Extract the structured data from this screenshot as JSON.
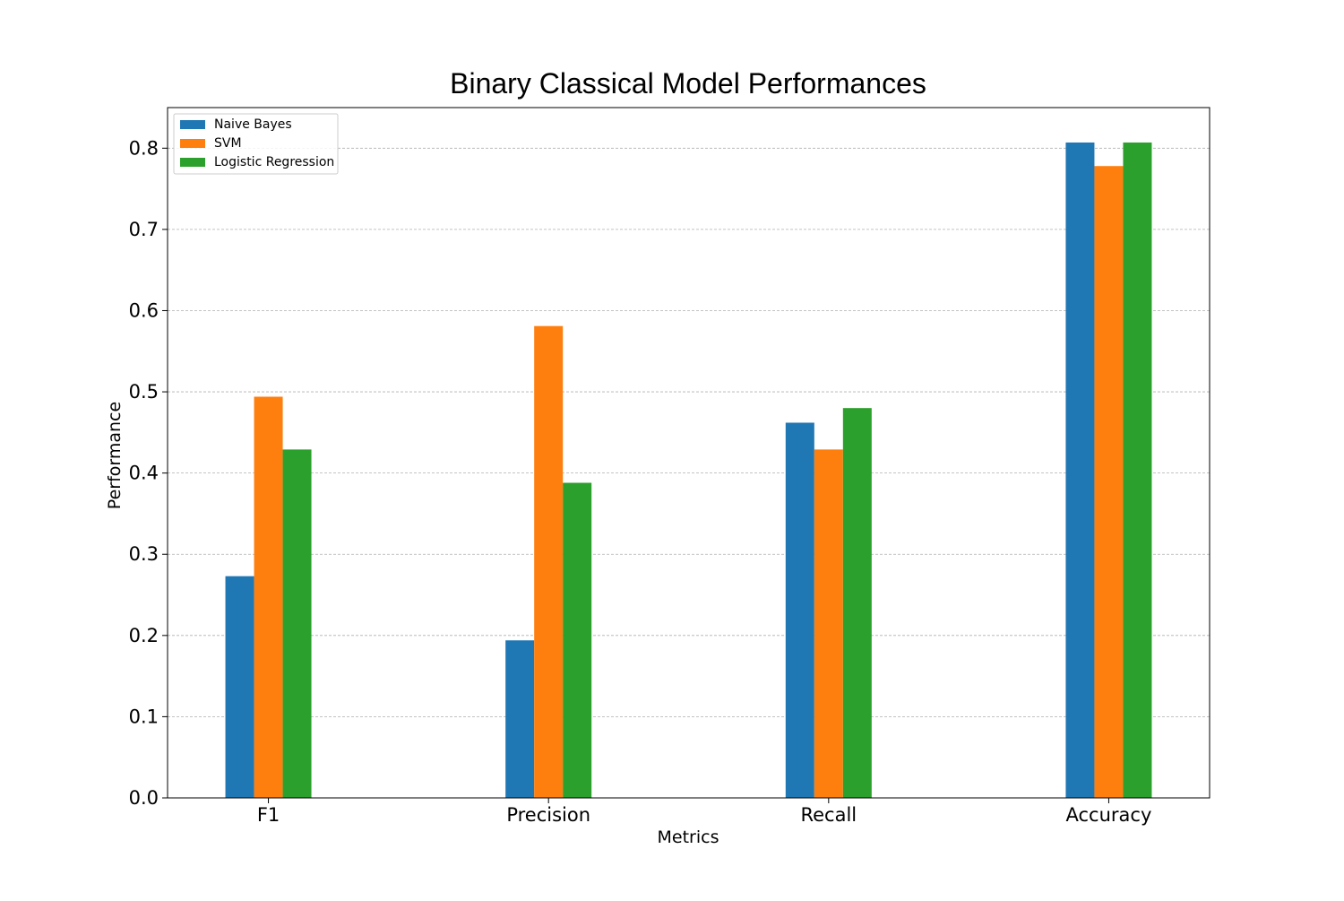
{
  "chart_data": {
    "type": "bar",
    "title": "Binary Classical Model Performances",
    "xlabel": "Metrics",
    "ylabel": "Performance",
    "categories": [
      "F1",
      "Precision",
      "Recall",
      "Accuracy"
    ],
    "series": [
      {
        "name": "Naive Bayes",
        "color": "#1f77b4",
        "values": [
          0.273,
          0.194,
          0.462,
          0.807
        ]
      },
      {
        "name": "SVM",
        "color": "#ff7f0e",
        "values": [
          0.494,
          0.581,
          0.429,
          0.778
        ]
      },
      {
        "name": "Logistic Regression",
        "color": "#2ca02c",
        "values": [
          0.429,
          0.388,
          0.48,
          0.807
        ]
      }
    ],
    "ylim": [
      0,
      0.85
    ],
    "yticks": [
      "0.0",
      "0.1",
      "0.2",
      "0.3",
      "0.4",
      "0.5",
      "0.6",
      "0.7",
      "0.8"
    ],
    "grid": "y-dashed",
    "legend_position": "top-left"
  }
}
